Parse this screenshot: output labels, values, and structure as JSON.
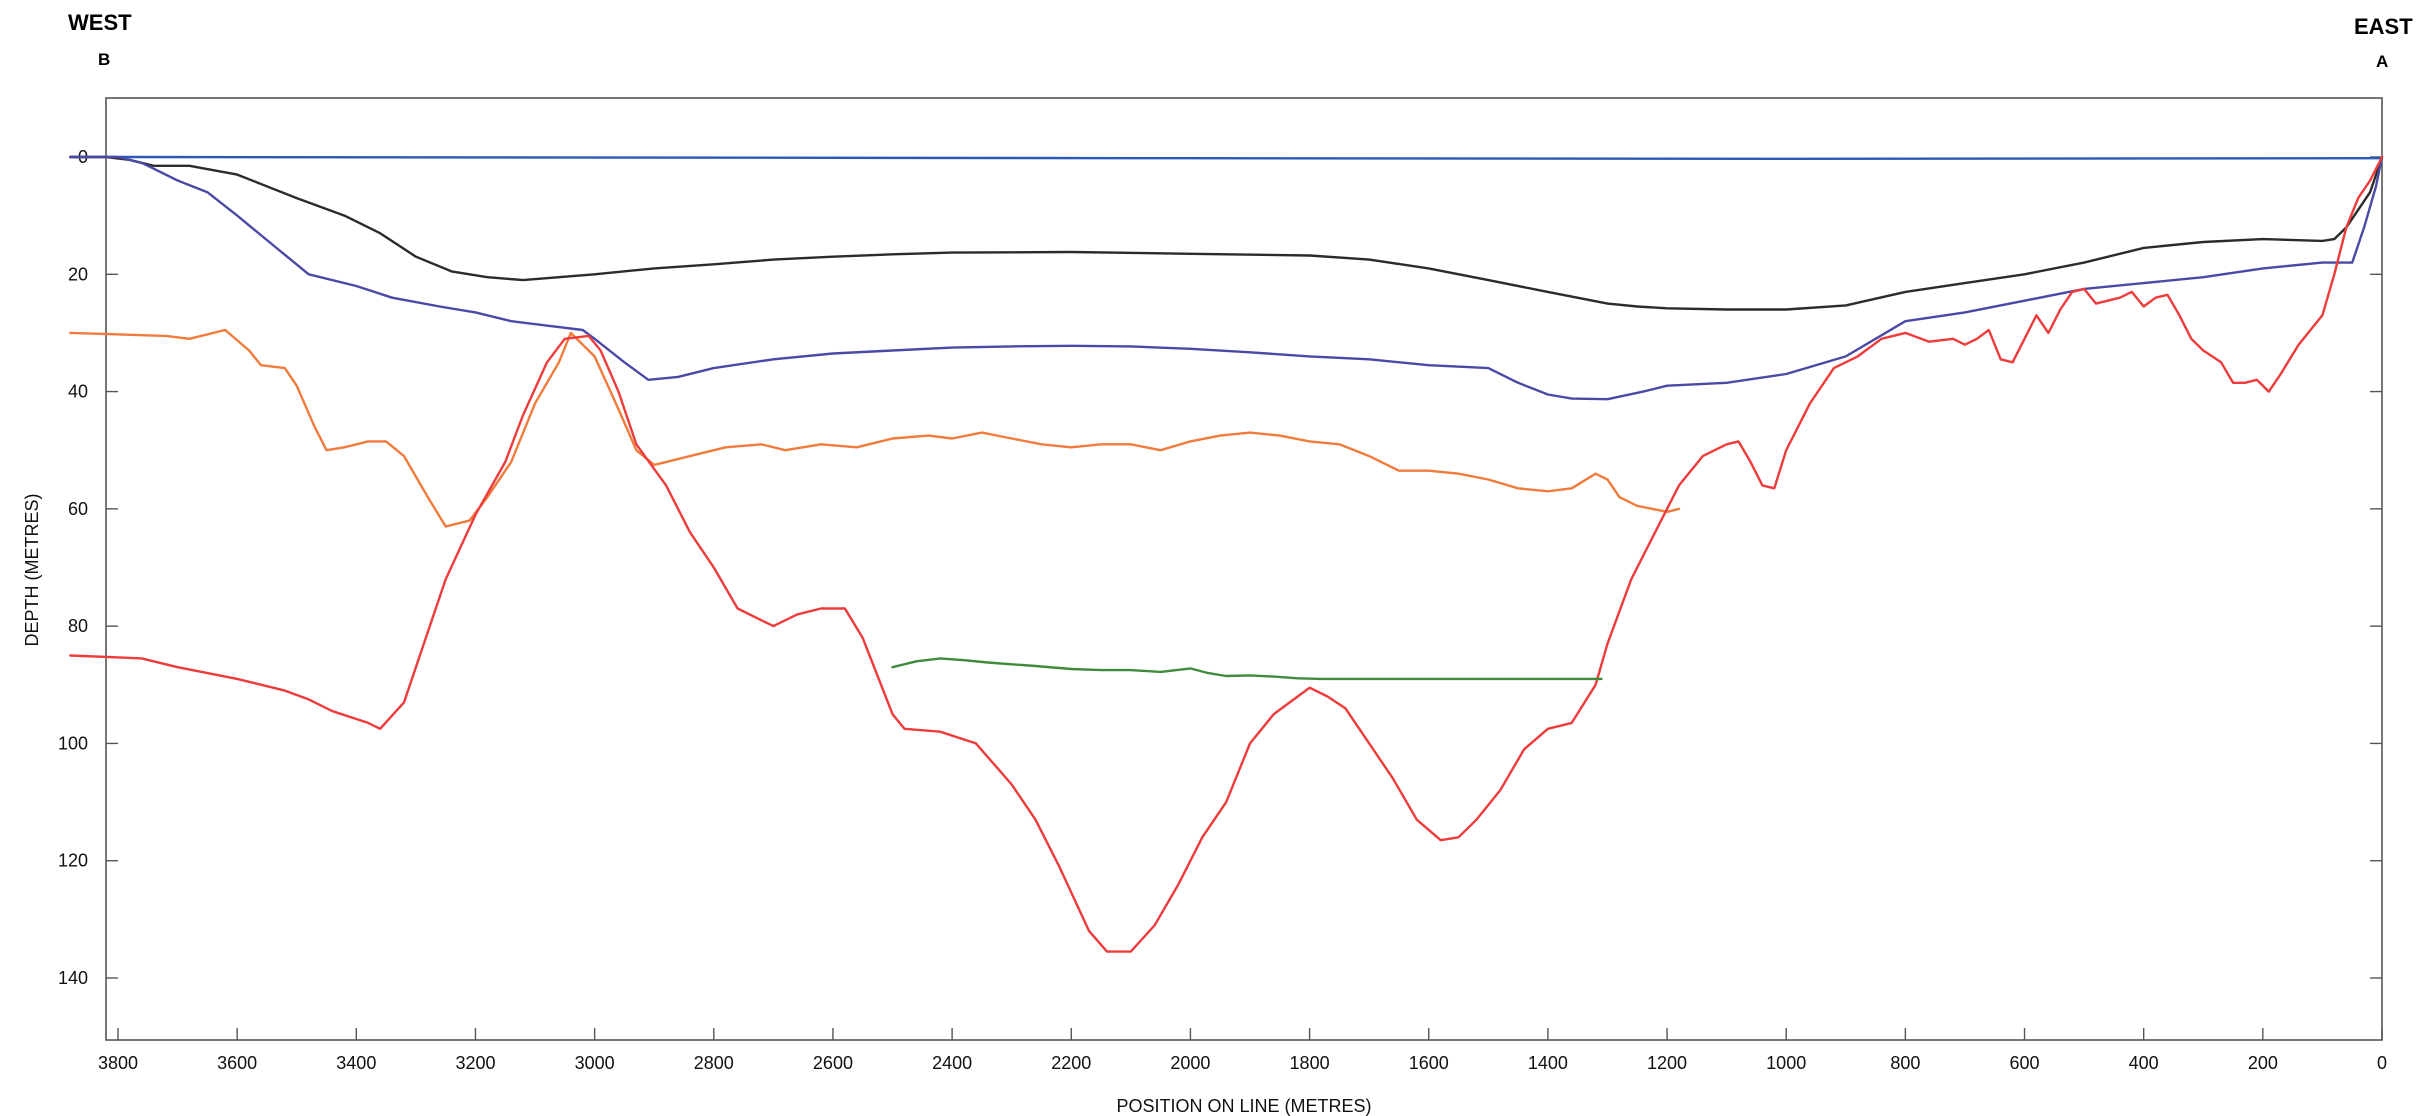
{
  "labels": {
    "west": "WEST",
    "east": "EAST",
    "point_b": "B",
    "point_a": "A"
  },
  "chart_data": {
    "type": "line",
    "xlabel": "POSITION ON LINE (METRES)",
    "ylabel": "DEPTH (METRES)",
    "x_reversed": true,
    "y_inverted": true,
    "xlim": [
      0,
      3880
    ],
    "ylim": [
      -10,
      150
    ],
    "x_ticks": [
      3800,
      3600,
      3400,
      3200,
      3000,
      2800,
      2600,
      2400,
      2200,
      2000,
      1800,
      1600,
      1400,
      1200,
      1000,
      800,
      600,
      400,
      200,
      0
    ],
    "y_ticks": [
      0,
      20,
      40,
      60,
      80,
      100,
      120,
      140
    ],
    "grid": false,
    "series": [
      {
        "color": "#2c59b5",
        "points": [
          [
            3880,
            0
          ],
          [
            3800,
            0
          ],
          [
            2000,
            0.2
          ],
          [
            1000,
            0.3
          ],
          [
            0,
            0.2
          ]
        ]
      },
      {
        "color": "#2b2b2b",
        "points": [
          [
            3880,
            0
          ],
          [
            3820,
            0
          ],
          [
            3780,
            0.5
          ],
          [
            3740,
            1.5
          ],
          [
            3680,
            1.5
          ],
          [
            3600,
            3
          ],
          [
            3500,
            7
          ],
          [
            3420,
            10
          ],
          [
            3360,
            13
          ],
          [
            3300,
            17
          ],
          [
            3240,
            19.5
          ],
          [
            3180,
            20.5
          ],
          [
            3120,
            21
          ],
          [
            3060,
            20.5
          ],
          [
            3000,
            20
          ],
          [
            2900,
            19
          ],
          [
            2800,
            18.3
          ],
          [
            2700,
            17.5
          ],
          [
            2600,
            17
          ],
          [
            2500,
            16.6
          ],
          [
            2400,
            16.3
          ],
          [
            2200,
            16.2
          ],
          [
            2000,
            16.5
          ],
          [
            1800,
            16.8
          ],
          [
            1700,
            17.5
          ],
          [
            1600,
            19
          ],
          [
            1500,
            21
          ],
          [
            1400,
            23
          ],
          [
            1300,
            25
          ],
          [
            1250,
            25.5
          ],
          [
            1200,
            25.8
          ],
          [
            1100,
            26
          ],
          [
            1000,
            26
          ],
          [
            900,
            25.3
          ],
          [
            800,
            23
          ],
          [
            700,
            21.5
          ],
          [
            600,
            20
          ],
          [
            500,
            18
          ],
          [
            400,
            15.5
          ],
          [
            300,
            14.5
          ],
          [
            200,
            14
          ],
          [
            100,
            14.3
          ],
          [
            80,
            14
          ],
          [
            60,
            12
          ],
          [
            40,
            9
          ],
          [
            20,
            6
          ],
          [
            0,
            0
          ]
        ]
      },
      {
        "color": "#4a4aa6",
        "points": [
          [
            3880,
            0
          ],
          [
            3800,
            0
          ],
          [
            3760,
            1
          ],
          [
            3740,
            2
          ],
          [
            3700,
            4
          ],
          [
            3650,
            6
          ],
          [
            3600,
            10
          ],
          [
            3540,
            15
          ],
          [
            3480,
            20
          ],
          [
            3400,
            22
          ],
          [
            3340,
            24
          ],
          [
            3260,
            25.5
          ],
          [
            3200,
            26.5
          ],
          [
            3140,
            28
          ],
          [
            3060,
            29
          ],
          [
            3020,
            29.5
          ],
          [
            3000,
            31
          ],
          [
            2950,
            35
          ],
          [
            2910,
            38
          ],
          [
            2860,
            37.5
          ],
          [
            2800,
            36
          ],
          [
            2700,
            34.5
          ],
          [
            2600,
            33.5
          ],
          [
            2500,
            33
          ],
          [
            2400,
            32.5
          ],
          [
            2300,
            32.3
          ],
          [
            2200,
            32.2
          ],
          [
            2100,
            32.3
          ],
          [
            2000,
            32.7
          ],
          [
            1900,
            33.3
          ],
          [
            1800,
            34
          ],
          [
            1700,
            34.5
          ],
          [
            1600,
            35.5
          ],
          [
            1500,
            36
          ],
          [
            1450,
            38.5
          ],
          [
            1400,
            40.5
          ],
          [
            1360,
            41.2
          ],
          [
            1300,
            41.3
          ],
          [
            1240,
            40
          ],
          [
            1200,
            39
          ],
          [
            1100,
            38.5
          ],
          [
            1000,
            37
          ],
          [
            900,
            34
          ],
          [
            800,
            28
          ],
          [
            700,
            26.5
          ],
          [
            600,
            24.5
          ],
          [
            500,
            22.5
          ],
          [
            400,
            21.5
          ],
          [
            300,
            20.5
          ],
          [
            200,
            19
          ],
          [
            100,
            18
          ],
          [
            50,
            18
          ],
          [
            30,
            12
          ],
          [
            10,
            5
          ],
          [
            0,
            0
          ]
        ]
      },
      {
        "color": "#f07b3c",
        "points": [
          [
            3880,
            30
          ],
          [
            3720,
            30.5
          ],
          [
            3680,
            31
          ],
          [
            3620,
            29.5
          ],
          [
            3580,
            33
          ],
          [
            3560,
            35.5
          ],
          [
            3520,
            36
          ],
          [
            3500,
            39
          ],
          [
            3470,
            46
          ],
          [
            3450,
            50
          ],
          [
            3420,
            49.5
          ],
          [
            3380,
            48.5
          ],
          [
            3350,
            48.5
          ],
          [
            3320,
            51
          ],
          [
            3280,
            58
          ],
          [
            3250,
            63
          ],
          [
            3210,
            62
          ],
          [
            3180,
            58
          ],
          [
            3140,
            52
          ],
          [
            3100,
            42
          ],
          [
            3060,
            35
          ],
          [
            3040,
            30
          ],
          [
            3000,
            34
          ],
          [
            2960,
            43
          ],
          [
            2930,
            50
          ],
          [
            2900,
            52.5
          ],
          [
            2840,
            51
          ],
          [
            2780,
            49.5
          ],
          [
            2720,
            49
          ],
          [
            2680,
            50
          ],
          [
            2620,
            49
          ],
          [
            2560,
            49.5
          ],
          [
            2500,
            48
          ],
          [
            2440,
            47.5
          ],
          [
            2400,
            48
          ],
          [
            2350,
            47
          ],
          [
            2300,
            48
          ],
          [
            2250,
            49
          ],
          [
            2200,
            49.5
          ],
          [
            2150,
            49
          ],
          [
            2100,
            49
          ],
          [
            2050,
            50
          ],
          [
            2000,
            48.5
          ],
          [
            1950,
            47.5
          ],
          [
            1900,
            47
          ],
          [
            1850,
            47.5
          ],
          [
            1800,
            48.5
          ],
          [
            1750,
            49
          ],
          [
            1700,
            51
          ],
          [
            1650,
            53.5
          ],
          [
            1600,
            53.5
          ],
          [
            1550,
            54
          ],
          [
            1500,
            55
          ],
          [
            1450,
            56.5
          ],
          [
            1400,
            57
          ],
          [
            1360,
            56.5
          ],
          [
            1320,
            54
          ],
          [
            1300,
            55
          ],
          [
            1280,
            58
          ],
          [
            1250,
            59.5
          ],
          [
            1200,
            60.5
          ],
          [
            1180,
            60
          ]
        ]
      },
      {
        "color": "#ee3b3b",
        "points": [
          [
            3880,
            85
          ],
          [
            3760,
            85.5
          ],
          [
            3700,
            87
          ],
          [
            3600,
            89
          ],
          [
            3520,
            91
          ],
          [
            3480,
            92.5
          ],
          [
            3440,
            94.5
          ],
          [
            3380,
            96.5
          ],
          [
            3360,
            97.5
          ],
          [
            3320,
            93
          ],
          [
            3280,
            81
          ],
          [
            3250,
            72
          ],
          [
            3200,
            61
          ],
          [
            3150,
            52
          ],
          [
            3120,
            44
          ],
          [
            3080,
            35
          ],
          [
            3050,
            31
          ],
          [
            3010,
            30.5
          ],
          [
            2990,
            33
          ],
          [
            2960,
            40
          ],
          [
            2930,
            49
          ],
          [
            2880,
            56
          ],
          [
            2840,
            64
          ],
          [
            2800,
            70
          ],
          [
            2760,
            77
          ],
          [
            2720,
            79
          ],
          [
            2700,
            80
          ],
          [
            2660,
            78
          ],
          [
            2620,
            77
          ],
          [
            2580,
            77
          ],
          [
            2550,
            82
          ],
          [
            2500,
            95
          ],
          [
            2480,
            97.5
          ],
          [
            2420,
            98
          ],
          [
            2360,
            100
          ],
          [
            2300,
            107
          ],
          [
            2260,
            113
          ],
          [
            2220,
            121
          ],
          [
            2170,
            132
          ],
          [
            2140,
            135.5
          ],
          [
            2100,
            135.5
          ],
          [
            2060,
            131
          ],
          [
            2020,
            124
          ],
          [
            1980,
            116
          ],
          [
            1940,
            110
          ],
          [
            1900,
            100
          ],
          [
            1860,
            95
          ],
          [
            1820,
            92
          ],
          [
            1800,
            90.5
          ],
          [
            1770,
            92
          ],
          [
            1740,
            94
          ],
          [
            1700,
            100
          ],
          [
            1660,
            106
          ],
          [
            1620,
            113
          ],
          [
            1580,
            116.5
          ],
          [
            1550,
            116
          ],
          [
            1520,
            113
          ],
          [
            1480,
            108
          ],
          [
            1440,
            101
          ],
          [
            1400,
            97.5
          ],
          [
            1360,
            96.5
          ],
          [
            1320,
            90
          ],
          [
            1300,
            83
          ],
          [
            1260,
            72
          ],
          [
            1220,
            64
          ],
          [
            1180,
            56
          ],
          [
            1140,
            51
          ],
          [
            1100,
            49
          ],
          [
            1080,
            48.5
          ],
          [
            1060,
            52
          ],
          [
            1040,
            56
          ],
          [
            1020,
            56.5
          ],
          [
            1000,
            50
          ],
          [
            960,
            42
          ],
          [
            920,
            36
          ],
          [
            880,
            34
          ],
          [
            840,
            31
          ],
          [
            800,
            30
          ],
          [
            760,
            31.5
          ],
          [
            720,
            31
          ],
          [
            700,
            32
          ],
          [
            680,
            31
          ],
          [
            660,
            29.5
          ],
          [
            640,
            34.5
          ],
          [
            620,
            35
          ],
          [
            600,
            31
          ],
          [
            580,
            27
          ],
          [
            560,
            30
          ],
          [
            540,
            26
          ],
          [
            520,
            23
          ],
          [
            500,
            22.5
          ],
          [
            480,
            25
          ],
          [
            440,
            24
          ],
          [
            420,
            23
          ],
          [
            400,
            25.5
          ],
          [
            380,
            24
          ],
          [
            360,
            23.5
          ],
          [
            340,
            27
          ],
          [
            320,
            31
          ],
          [
            300,
            33
          ],
          [
            270,
            35
          ],
          [
            250,
            38.5
          ],
          [
            230,
            38.5
          ],
          [
            210,
            38
          ],
          [
            190,
            40
          ],
          [
            170,
            37
          ],
          [
            140,
            32
          ],
          [
            100,
            27
          ],
          [
            80,
            20
          ],
          [
            60,
            12
          ],
          [
            40,
            7
          ],
          [
            20,
            4
          ],
          [
            0,
            0
          ]
        ]
      },
      {
        "color": "#3f8b3c",
        "points": [
          [
            2500,
            87
          ],
          [
            2460,
            86
          ],
          [
            2420,
            85.5
          ],
          [
            2380,
            85.8
          ],
          [
            2340,
            86.2
          ],
          [
            2300,
            86.5
          ],
          [
            2260,
            86.8
          ],
          [
            2200,
            87.3
          ],
          [
            2150,
            87.5
          ],
          [
            2100,
            87.5
          ],
          [
            2050,
            87.8
          ],
          [
            2000,
            87.2
          ],
          [
            1970,
            88
          ],
          [
            1940,
            88.5
          ],
          [
            1900,
            88.4
          ],
          [
            1860,
            88.6
          ],
          [
            1820,
            88.9
          ],
          [
            1780,
            89
          ],
          [
            1700,
            89
          ],
          [
            1600,
            89
          ],
          [
            1500,
            89
          ],
          [
            1400,
            89
          ],
          [
            1310,
            89
          ]
        ]
      }
    ]
  }
}
